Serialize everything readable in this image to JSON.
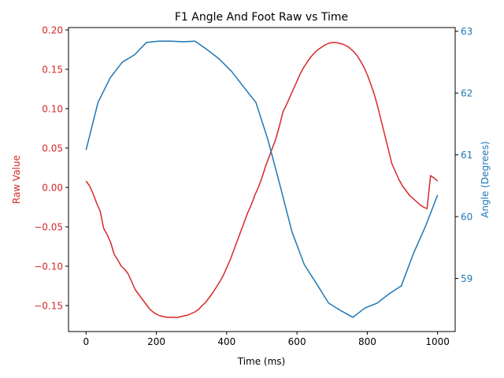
{
  "chart_data": {
    "type": "line",
    "title": "F1 Angle And Foot Raw vs Time",
    "xlabel": "Time (ms)",
    "xlim": [
      -50,
      1050
    ],
    "xticks": [
      0,
      200,
      400,
      600,
      800,
      1000
    ],
    "grid": false,
    "colors": {
      "raw": "#d62728",
      "angle": "#1f77b4"
    },
    "axes": {
      "left": {
        "label": "Raw Value",
        "ylim": [
          -0.183,
          0.203
        ],
        "ticks": [
          -0.15,
          -0.1,
          -0.05,
          0.0,
          0.05,
          0.1,
          0.15,
          0.2
        ],
        "tick_labels": [
          "−0.15",
          "−0.10",
          "−0.05",
          "0.00",
          "0.05",
          "0.10",
          "0.15",
          "0.20"
        ]
      },
      "right": {
        "label": "Angle (Degrees)",
        "ylim": [
          58.14,
          63.06
        ],
        "ticks": [
          59,
          60,
          61,
          62,
          63
        ],
        "tick_labels": [
          "59",
          "60",
          "61",
          "62",
          "63"
        ]
      }
    },
    "series": [
      {
        "axis": "left",
        "x": [
          0,
          10,
          20,
          30,
          40,
          50,
          60,
          70,
          80,
          90,
          100,
          110,
          120,
          130,
          140,
          150,
          160,
          170,
          180,
          190,
          200,
          210,
          220,
          230,
          240,
          250,
          260,
          270,
          280,
          290,
          300,
          310,
          320,
          330,
          340,
          350,
          360,
          370,
          380,
          390,
          400,
          410,
          420,
          430,
          440,
          450,
          460,
          470,
          480,
          490,
          500,
          510,
          520,
          530,
          540,
          550,
          560,
          570,
          580,
          590,
          600,
          610,
          620,
          630,
          640,
          650,
          660,
          670,
          680,
          690,
          700,
          710,
          720,
          730,
          740,
          750,
          760,
          770,
          780,
          790,
          800,
          810,
          820,
          830,
          840,
          850,
          860,
          870,
          880,
          890,
          900,
          910,
          920,
          930,
          940,
          950,
          960,
          970,
          980,
          990,
          1000
        ],
        "values": [
          0.008,
          0.002,
          -0.008,
          -0.02,
          -0.03,
          -0.052,
          -0.06,
          -0.07,
          -0.085,
          -0.092,
          -0.1,
          -0.104,
          -0.11,
          -0.12,
          -0.13,
          -0.136,
          -0.142,
          -0.148,
          -0.154,
          -0.158,
          -0.161,
          -0.163,
          -0.164,
          -0.165,
          -0.165,
          -0.165,
          -0.165,
          -0.164,
          -0.163,
          -0.162,
          -0.16,
          -0.158,
          -0.155,
          -0.15,
          -0.146,
          -0.14,
          -0.134,
          -0.127,
          -0.12,
          -0.112,
          -0.102,
          -0.092,
          -0.08,
          -0.068,
          -0.056,
          -0.044,
          -0.032,
          -0.022,
          -0.01,
          0.0,
          0.012,
          0.026,
          0.038,
          0.05,
          0.062,
          0.078,
          0.096,
          0.105,
          0.115,
          0.125,
          0.135,
          0.145,
          0.153,
          0.16,
          0.166,
          0.171,
          0.175,
          0.178,
          0.181,
          0.183,
          0.184,
          0.184,
          0.183,
          0.182,
          0.18,
          0.177,
          0.173,
          0.168,
          0.161,
          0.153,
          0.143,
          0.131,
          0.118,
          0.102,
          0.084,
          0.066,
          0.048,
          0.03,
          0.02,
          0.01,
          0.002,
          -0.004,
          -0.01,
          -0.014,
          -0.018,
          -0.022,
          -0.025,
          -0.027,
          0.015,
          0.012,
          0.008
        ]
      },
      {
        "axis": "right",
        "x": [
          0,
          34,
          69,
          103,
          138,
          172,
          207,
          241,
          276,
          310,
          345,
          379,
          414,
          448,
          483,
          517,
          552,
          586,
          621,
          655,
          690,
          724,
          759,
          793,
          828,
          862,
          897,
          931,
          966,
          1000
        ],
        "values": [
          61.08,
          61.85,
          62.25,
          62.5,
          62.62,
          62.82,
          62.84,
          62.84,
          62.83,
          62.84,
          62.7,
          62.55,
          62.35,
          62.1,
          61.85,
          61.25,
          60.5,
          59.75,
          59.22,
          58.92,
          58.6,
          58.48,
          58.37,
          58.52,
          58.6,
          58.75,
          58.88,
          59.4,
          59.85,
          60.35
        ]
      }
    ]
  }
}
